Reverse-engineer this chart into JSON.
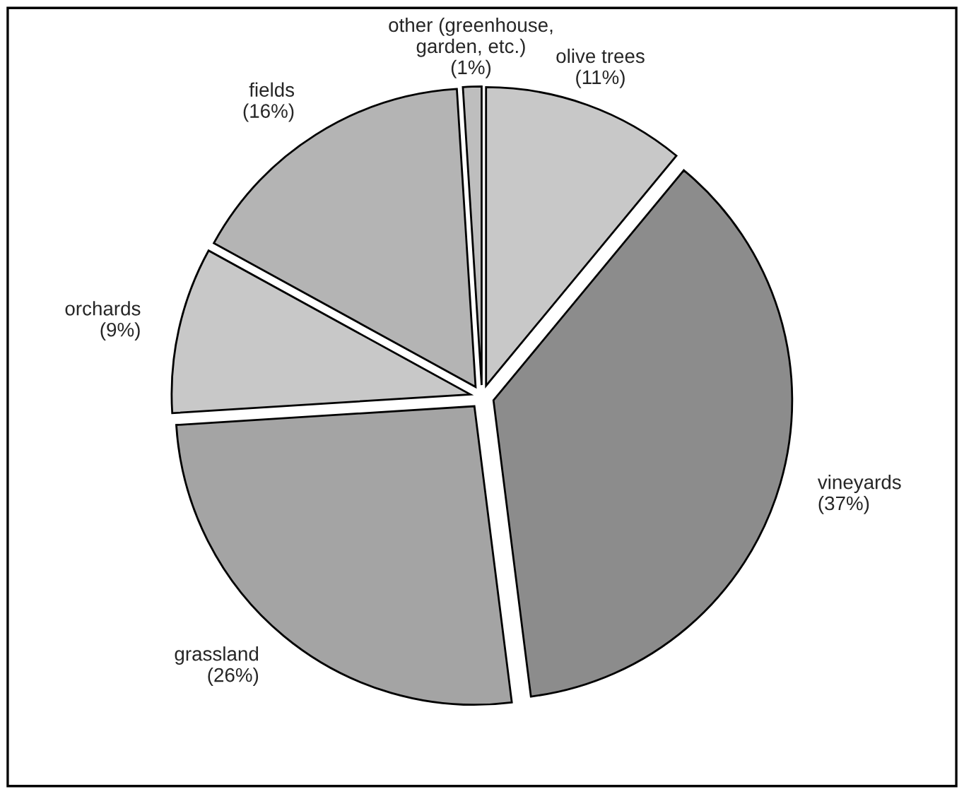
{
  "chart_data": {
    "type": "pie",
    "categories": [
      "olive trees",
      "vineyards",
      "grassland",
      "orchards",
      "fields",
      "other (greenhouse,\ngarden, etc.)"
    ],
    "values": [
      11,
      37,
      26,
      9,
      16,
      1
    ],
    "value_labels": [
      "(11%)",
      "(37%)",
      "(26%)",
      "(9%)",
      "(16%)",
      "(1%)"
    ],
    "colors": [
      "#c8c8c8",
      "#8c8c8c",
      "#a4a4a4",
      "#c8c8c8",
      "#b4b4b4",
      "#bebebe"
    ]
  }
}
